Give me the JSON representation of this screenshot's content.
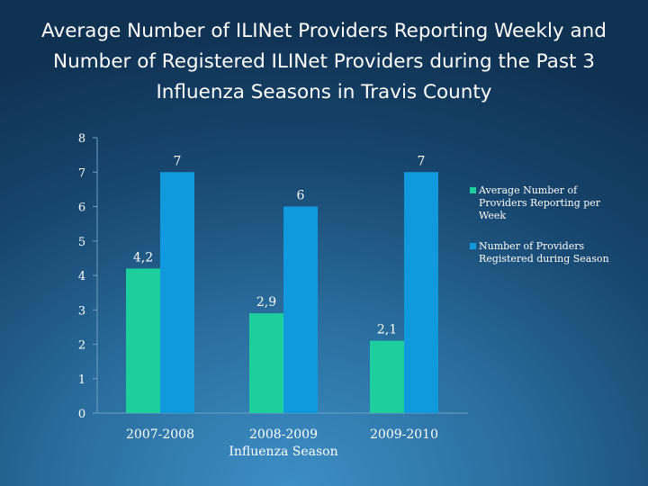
{
  "chart_data": {
    "type": "bar",
    "title": "Average Number of ILINet Providers Reporting Weekly and Number of Registered ILINet Providers during the Past 3 Influenza Seasons in Travis County",
    "xlabel": "Influenza Season",
    "ylabel": "",
    "categories": [
      "2007-2008",
      "2008-2009",
      "2009-2010"
    ],
    "series": [
      {
        "name": "Average Number of Providers Reporting per Week",
        "values": [
          4.2,
          2.9,
          2.1
        ],
        "labels": [
          "4,2",
          "2,9",
          "2,1"
        ],
        "color": "#1ecf9e"
      },
      {
        "name": "Number of Providers Registered during Season",
        "values": [
          7,
          6,
          7
        ],
        "labels": [
          "7",
          "6",
          "7"
        ],
        "color": "#1199de"
      }
    ],
    "ylim": [
      0,
      8
    ],
    "yticks": [
      0,
      1,
      2,
      3,
      4,
      5,
      6,
      7,
      8
    ],
    "grid": false,
    "legend": "right"
  }
}
